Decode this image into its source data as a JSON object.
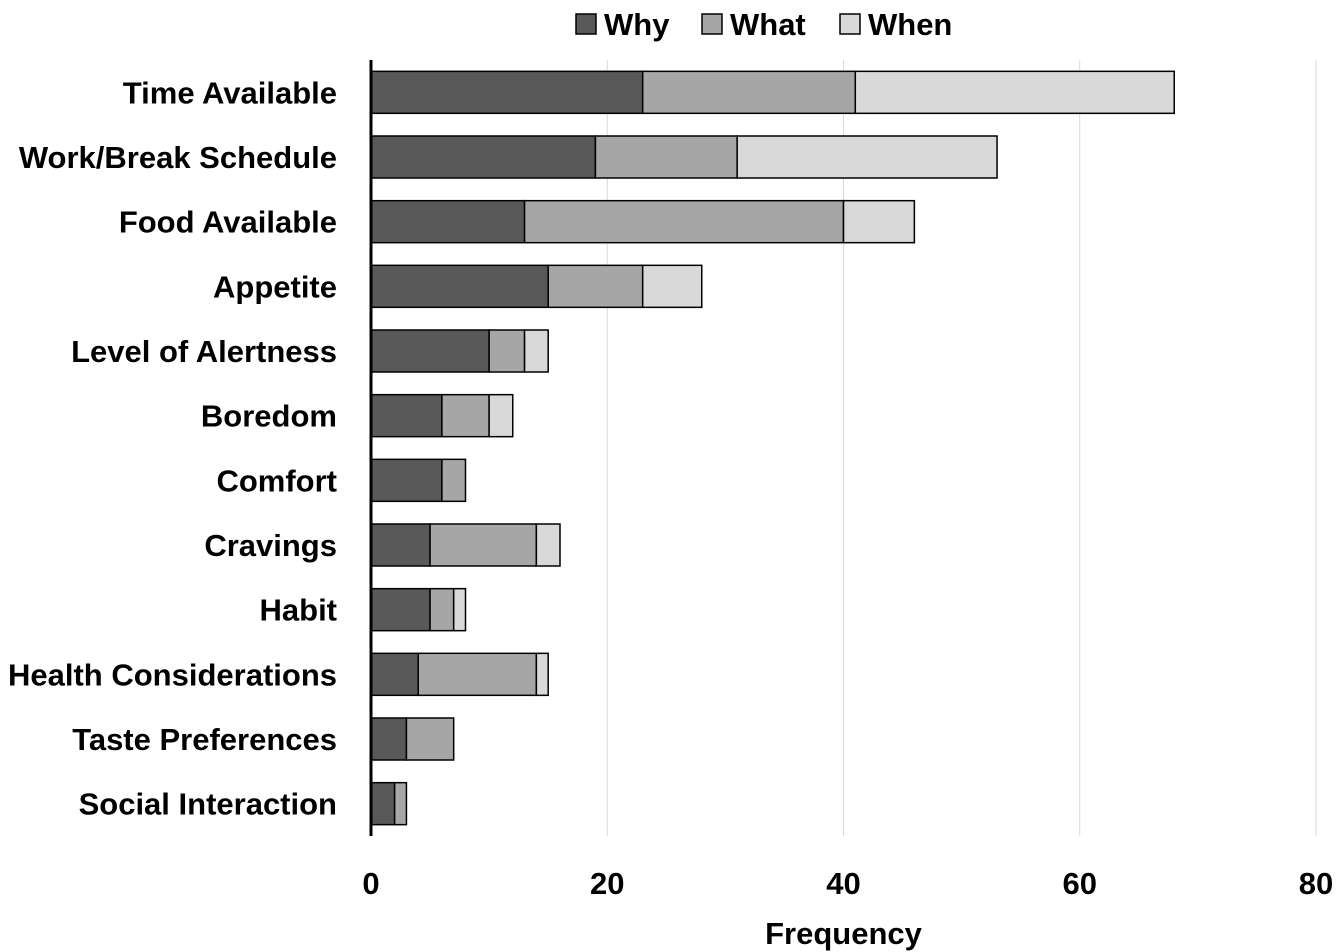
{
  "chart_data": {
    "type": "bar",
    "orientation": "horizontal",
    "stacked": true,
    "title": "",
    "xlabel": "Frequency",
    "ylabel": "",
    "xlim": [
      0,
      80
    ],
    "xticks": [
      "0",
      "20",
      "40",
      "60",
      "80"
    ],
    "grid": "vertical",
    "legend_position": "top",
    "categories": [
      "Time Available",
      "Work/Break Schedule",
      "Food Available",
      "Appetite",
      "Level of Alertness",
      "Boredom",
      "Comfort",
      "Cravings",
      "Habit",
      "Health Considerations",
      "Taste Preferences",
      "Social Interaction"
    ],
    "series": [
      {
        "name": "Why",
        "color": "#595959",
        "values": [
          23,
          19,
          13,
          15,
          10,
          6,
          6,
          5,
          5,
          4,
          3,
          2
        ]
      },
      {
        "name": "What",
        "color": "#a6a6a6",
        "values": [
          18,
          12,
          27,
          8,
          3,
          4,
          2,
          9,
          2,
          10,
          4,
          1
        ]
      },
      {
        "name": "When",
        "color": "#d9d9d9",
        "values": [
          27,
          22,
          6,
          5,
          2,
          2,
          0,
          2,
          1,
          1,
          0,
          0
        ]
      }
    ]
  }
}
